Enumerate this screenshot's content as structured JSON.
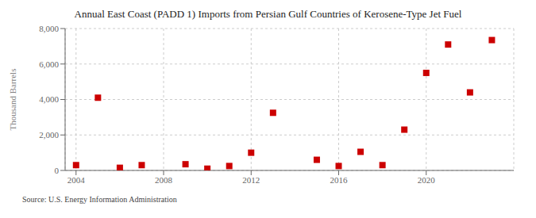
{
  "chart_data": {
    "type": "scatter",
    "title": "Annual East Coast (PADD 1) Imports from Persian Gulf Countries of Kerosene-Type Jet Fuel",
    "ylabel": "Thousand Barrels",
    "annotations": [
      "Source: U.S. Energy Information Administration"
    ],
    "x": [
      2004,
      2005,
      2006,
      2007,
      2009,
      2010,
      2011,
      2012,
      2013,
      2015,
      2016,
      2017,
      2018,
      2019,
      2020,
      2021,
      2022,
      2023
    ],
    "values": [
      300,
      4100,
      150,
      300,
      350,
      100,
      250,
      1000,
      3250,
      600,
      250,
      1050,
      300,
      2300,
      5500,
      7100,
      4400,
      7350
    ],
    "color": "#cc0000",
    "marker": "square",
    "xlim": [
      2003.5,
      2024.0
    ],
    "ylim": [
      0,
      8000
    ],
    "xticks": [
      2004,
      2008,
      2012,
      2016,
      2020
    ],
    "yticks": [
      0,
      {
        "value": 2000,
        "label": "2,000"
      },
      {
        "value": 4000,
        "label": "4,000"
      },
      {
        "value": 6000,
        "label": "6,000"
      },
      {
        "value": 8000,
        "label": "8,000"
      }
    ],
    "grid": true
  }
}
